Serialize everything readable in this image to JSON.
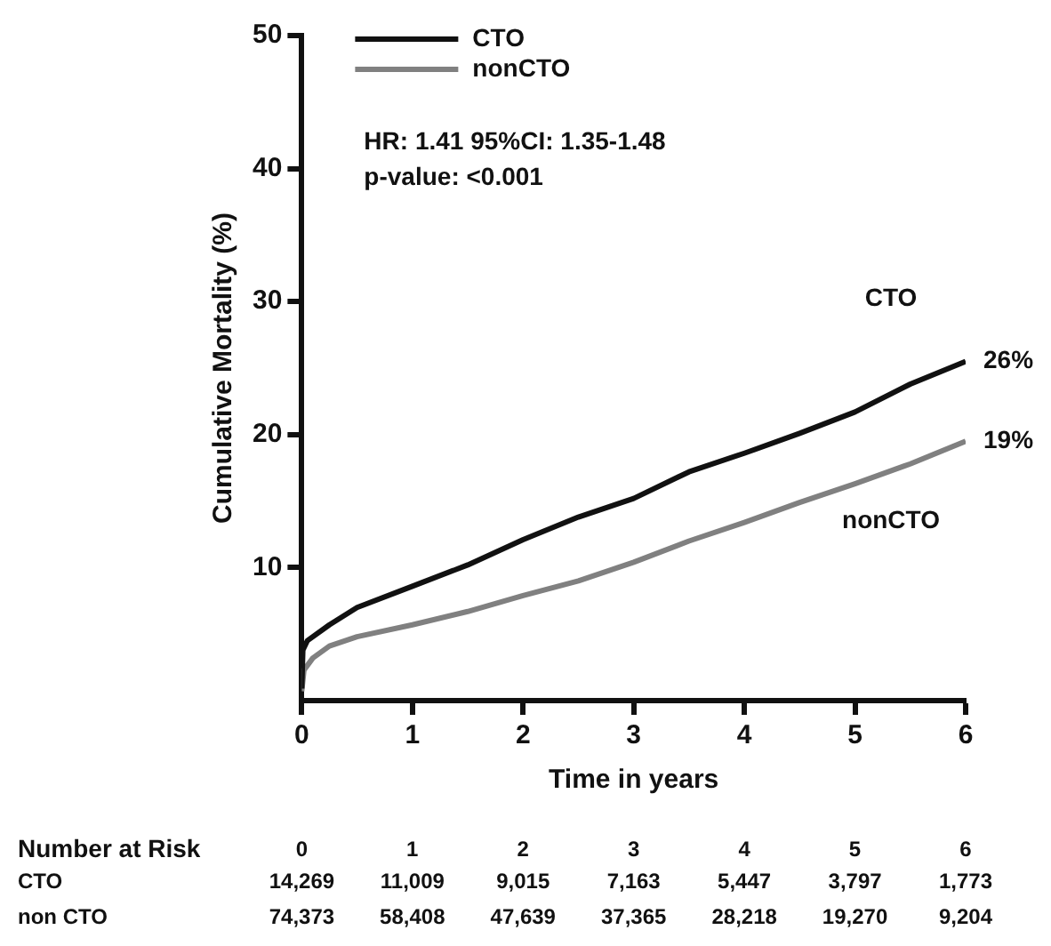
{
  "chart_data": {
    "type": "line",
    "xlabel": "Time in years",
    "ylabel": "Cumulative Mortality (%)",
    "xlim": [
      0,
      6
    ],
    "xticks": [
      0,
      1,
      2,
      3,
      4,
      5,
      6
    ],
    "ylim": [
      0,
      50
    ],
    "yticks": [
      10,
      20,
      30,
      40,
      50
    ],
    "grid": false,
    "legend": "top left",
    "marker": "none",
    "line_style": "solid",
    "series": [
      {
        "name": "CTO",
        "color": "#111111",
        "x": [
          0,
          0.01,
          0.05,
          0.25,
          0.5,
          1,
          1.5,
          2,
          2.5,
          3,
          3.5,
          4,
          4.5,
          5,
          5.5,
          6
        ],
        "values": [
          0.9,
          3.8,
          4.5,
          5.7,
          7,
          8.6,
          10.2,
          12.1,
          13.8,
          15.2,
          17.2,
          18.6,
          20.1,
          21.7,
          23.8,
          25.5
        ],
        "value_labels": [
          null,
          null,
          null,
          null,
          null,
          null,
          null,
          null,
          null,
          null,
          null,
          null,
          null,
          null,
          null,
          "26%"
        ]
      },
      {
        "name": "nonCTO",
        "color": "#808080",
        "x": [
          0,
          0.02,
          0.1,
          0.25,
          0.5,
          1,
          1.5,
          2,
          2.5,
          3,
          3.5,
          4,
          4.5,
          5,
          5.5,
          6
        ],
        "values": [
          0.7,
          2.3,
          3.2,
          4.1,
          4.8,
          5.7,
          6.7,
          7.9,
          9,
          10.4,
          12,
          13.4,
          14.9,
          16.3,
          17.8,
          19.5
        ],
        "value_labels": [
          null,
          null,
          null,
          null,
          null,
          null,
          null,
          null,
          null,
          null,
          null,
          null,
          null,
          null,
          null,
          "19%"
        ]
      }
    ],
    "annotations": [
      "HR: 1.41 95%CI: 1.35-1.48",
      "p-value: <0.001",
      "Number at Risk",
      "0",
      "1",
      "2",
      "3",
      "4",
      "5",
      "6",
      "CTO",
      "non CTO",
      "14,269",
      "11,009",
      "9,015",
      "7,163",
      "5,447",
      "3,797",
      "1,773",
      "74,373",
      "58,408",
      "47,639",
      "37,365",
      "28,218",
      "19,270",
      "9,204"
    ]
  }
}
